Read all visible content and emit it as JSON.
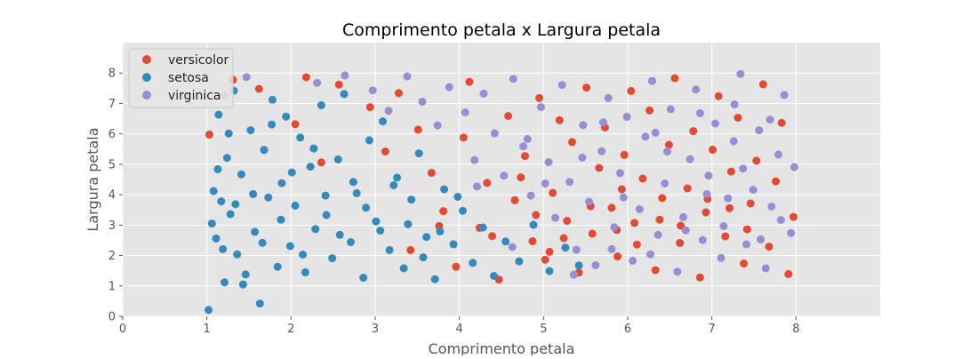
{
  "chart_data": {
    "type": "scatter",
    "title": "Comprimento petala x Largura petala",
    "xlabel": "Comprimento petala",
    "ylabel": "Largura petala",
    "xlim": [
      0,
      9
    ],
    "ylim": [
      0,
      9
    ],
    "xticks": [
      "0",
      "1",
      "2",
      "3",
      "4",
      "5",
      "6",
      "7",
      "8"
    ],
    "yticks": [
      "0",
      "1",
      "2",
      "3",
      "4",
      "5",
      "6",
      "7",
      "8"
    ],
    "grid": true,
    "legend": "top-left",
    "series": [
      {
        "name": "versicolor",
        "color": "#e24a33"
      },
      {
        "name": "setosa",
        "color": "#348abd"
      },
      {
        "name": "virginica",
        "color": "#988ed5"
      }
    ],
    "points": {
      "versicolor": [
        [
          1.03,
          5.98
        ],
        [
          1.31,
          7.78
        ],
        [
          1.62,
          7.48
        ],
        [
          2.05,
          6.32
        ],
        [
          2.18,
          7.86
        ],
        [
          2.36,
          5.06
        ],
        [
          2.57,
          7.62
        ],
        [
          2.94,
          6.88
        ],
        [
          3.12,
          5.42
        ],
        [
          3.28,
          7.34
        ],
        [
          3.42,
          2.18
        ],
        [
          3.51,
          6.14
        ],
        [
          3.67,
          4.72
        ],
        [
          3.81,
          3.46
        ],
        [
          3.96,
          1.63
        ],
        [
          4.05,
          5.88
        ],
        [
          4.12,
          7.71
        ],
        [
          4.24,
          2.91
        ],
        [
          4.33,
          4.39
        ],
        [
          4.47,
          1.21
        ],
        [
          4.58,
          6.59
        ],
        [
          4.66,
          3.82
        ],
        [
          4.78,
          5.27
        ],
        [
          4.87,
          2.47
        ],
        [
          4.95,
          7.18
        ],
        [
          5.02,
          1.86
        ],
        [
          5.11,
          4.06
        ],
        [
          5.19,
          6.45
        ],
        [
          5.28,
          3.14
        ],
        [
          5.34,
          5.73
        ],
        [
          5.42,
          1.44
        ],
        [
          5.51,
          7.52
        ],
        [
          5.58,
          2.72
        ],
        [
          5.66,
          4.88
        ],
        [
          5.73,
          6.21
        ],
        [
          5.81,
          3.57
        ],
        [
          5.88,
          1.97
        ],
        [
          5.96,
          5.31
        ],
        [
          6.04,
          7.41
        ],
        [
          6.11,
          2.36
        ],
        [
          6.18,
          4.53
        ],
        [
          6.26,
          6.77
        ],
        [
          6.33,
          1.52
        ],
        [
          6.41,
          3.89
        ],
        [
          6.49,
          5.64
        ],
        [
          6.56,
          7.83
        ],
        [
          6.63,
          2.98
        ],
        [
          6.71,
          4.21
        ],
        [
          6.78,
          6.09
        ],
        [
          6.86,
          1.28
        ],
        [
          6.93,
          3.42
        ],
        [
          7.01,
          5.48
        ],
        [
          7.08,
          7.24
        ],
        [
          7.16,
          2.63
        ],
        [
          7.23,
          4.76
        ],
        [
          7.31,
          6.53
        ],
        [
          7.38,
          1.74
        ],
        [
          7.46,
          3.71
        ],
        [
          7.53,
          5.12
        ],
        [
          7.61,
          7.63
        ],
        [
          7.68,
          2.29
        ],
        [
          7.76,
          4.44
        ],
        [
          7.83,
          6.36
        ],
        [
          7.91,
          1.39
        ],
        [
          7.97,
          3.27
        ],
        [
          5.07,
          2.12
        ],
        [
          4.91,
          3.33
        ],
        [
          5.24,
          2.57
        ],
        [
          6.38,
          3.18
        ],
        [
          6.62,
          2.41
        ],
        [
          6.95,
          3.86
        ],
        [
          7.42,
          2.86
        ],
        [
          5.87,
          2.84
        ],
        [
          4.39,
          2.64
        ],
        [
          3.76,
          2.97
        ],
        [
          5.56,
          3.62
        ],
        [
          6.08,
          3.07
        ],
        [
          7.21,
          3.56
        ],
        [
          4.73,
          4.57
        ],
        [
          5.93,
          4.18
        ]
      ],
      "setosa": [
        [
          1.02,
          0.21
        ],
        [
          1.08,
          4.12
        ],
        [
          1.11,
          2.56
        ],
        [
          1.14,
          6.63
        ],
        [
          1.17,
          3.78
        ],
        [
          1.21,
          1.12
        ],
        [
          1.24,
          5.21
        ],
        [
          1.28,
          3.36
        ],
        [
          1.32,
          7.42
        ],
        [
          1.36,
          2.04
        ],
        [
          1.41,
          4.67
        ],
        [
          1.46,
          1.38
        ],
        [
          1.52,
          6.12
        ],
        [
          1.57,
          2.78
        ],
        [
          1.63,
          0.42
        ],
        [
          1.68,
          5.47
        ],
        [
          1.73,
          3.91
        ],
        [
          1.78,
          7.12
        ],
        [
          1.84,
          1.63
        ],
        [
          1.89,
          4.38
        ],
        [
          1.94,
          6.57
        ],
        [
          1.99,
          2.31
        ],
        [
          2.05,
          3.64
        ],
        [
          2.11,
          5.88
        ],
        [
          2.17,
          1.45
        ],
        [
          2.23,
          4.92
        ],
        [
          2.29,
          2.87
        ],
        [
          2.36,
          6.94
        ],
        [
          2.42,
          3.33
        ],
        [
          2.49,
          1.91
        ],
        [
          2.56,
          5.16
        ],
        [
          2.63,
          7.31
        ],
        [
          2.71,
          2.44
        ],
        [
          2.78,
          4.05
        ],
        [
          2.86,
          1.27
        ],
        [
          2.93,
          5.79
        ],
        [
          3.01,
          3.12
        ],
        [
          3.09,
          6.41
        ],
        [
          3.17,
          2.18
        ],
        [
          3.26,
          4.56
        ],
        [
          3.34,
          1.58
        ],
        [
          3.43,
          3.84
        ],
        [
          3.52,
          5.36
        ],
        [
          3.61,
          2.61
        ],
        [
          3.71,
          1.22
        ],
        [
          3.82,
          4.18
        ],
        [
          3.93,
          2.37
        ],
        [
          4.04,
          3.47
        ],
        [
          4.16,
          1.76
        ],
        [
          4.28,
          2.92
        ],
        [
          4.41,
          1.33
        ],
        [
          4.55,
          2.46
        ],
        [
          4.71,
          1.81
        ],
        [
          4.88,
          3.01
        ],
        [
          5.07,
          1.49
        ],
        [
          5.26,
          2.26
        ],
        [
          5.42,
          1.67
        ],
        [
          1.06,
          3.05
        ],
        [
          1.13,
          4.84
        ],
        [
          1.19,
          2.21
        ],
        [
          1.26,
          6.01
        ],
        [
          1.34,
          3.69
        ],
        [
          1.43,
          1.05
        ],
        [
          1.55,
          4.02
        ],
        [
          1.66,
          2.42
        ],
        [
          1.77,
          6.31
        ],
        [
          1.88,
          3.18
        ],
        [
          2.01,
          4.73
        ],
        [
          2.14,
          2.03
        ],
        [
          2.27,
          5.52
        ],
        [
          2.41,
          3.97
        ],
        [
          2.58,
          2.68
        ],
        [
          2.74,
          4.42
        ],
        [
          2.89,
          3.57
        ],
        [
          3.06,
          2.82
        ],
        [
          3.22,
          4.31
        ],
        [
          3.39,
          3.03
        ],
        [
          3.57,
          1.94
        ],
        [
          3.77,
          2.79
        ],
        [
          3.98,
          3.93
        ]
      ],
      "virginica": [
        [
          1.21,
          7.26
        ],
        [
          1.47,
          7.87
        ],
        [
          2.31,
          7.68
        ],
        [
          2.64,
          7.92
        ],
        [
          2.97,
          7.43
        ],
        [
          3.16,
          6.76
        ],
        [
          3.38,
          7.89
        ],
        [
          3.56,
          7.06
        ],
        [
          3.74,
          6.28
        ],
        [
          3.88,
          7.54
        ],
        [
          4.07,
          6.71
        ],
        [
          4.18,
          5.14
        ],
        [
          4.29,
          7.33
        ],
        [
          4.42,
          6.02
        ],
        [
          4.53,
          4.63
        ],
        [
          4.64,
          7.81
        ],
        [
          4.76,
          5.59
        ],
        [
          4.85,
          3.97
        ],
        [
          4.97,
          6.88
        ],
        [
          5.06,
          5.07
        ],
        [
          5.14,
          3.24
        ],
        [
          5.22,
          7.61
        ],
        [
          5.31,
          4.42
        ],
        [
          5.39,
          2.19
        ],
        [
          5.47,
          6.29
        ],
        [
          5.54,
          3.77
        ],
        [
          5.62,
          1.68
        ],
        [
          5.69,
          5.43
        ],
        [
          5.77,
          7.18
        ],
        [
          5.84,
          2.93
        ],
        [
          5.91,
          4.71
        ],
        [
          5.99,
          6.56
        ],
        [
          6.06,
          1.83
        ],
        [
          6.14,
          3.52
        ],
        [
          6.21,
          5.91
        ],
        [
          6.29,
          7.74
        ],
        [
          6.36,
          2.68
        ],
        [
          6.44,
          4.37
        ],
        [
          6.51,
          6.81
        ],
        [
          6.59,
          1.47
        ],
        [
          6.66,
          3.26
        ],
        [
          6.74,
          5.17
        ],
        [
          6.81,
          7.46
        ],
        [
          6.89,
          2.51
        ],
        [
          6.96,
          4.63
        ],
        [
          7.04,
          6.34
        ],
        [
          7.11,
          1.92
        ],
        [
          7.19,
          3.88
        ],
        [
          7.26,
          5.76
        ],
        [
          7.34,
          7.97
        ],
        [
          7.41,
          2.37
        ],
        [
          7.49,
          4.16
        ],
        [
          7.56,
          6.12
        ],
        [
          7.64,
          1.58
        ],
        [
          7.71,
          3.61
        ],
        [
          7.79,
          5.32
        ],
        [
          7.86,
          7.28
        ],
        [
          7.94,
          2.74
        ],
        [
          7.98,
          4.91
        ],
        [
          5.36,
          1.37
        ],
        [
          5.81,
          2.21
        ],
        [
          6.27,
          2.04
        ],
        [
          6.69,
          2.83
        ],
        [
          7.14,
          2.97
        ],
        [
          7.58,
          2.53
        ],
        [
          4.63,
          2.28
        ],
        [
          5.02,
          4.37
        ],
        [
          5.46,
          5.22
        ],
        [
          5.95,
          3.91
        ],
        [
          6.47,
          5.42
        ],
        [
          6.94,
          4.02
        ],
        [
          7.37,
          4.86
        ],
        [
          7.82,
          3.17
        ],
        [
          4.21,
          4.27
        ],
        [
          4.81,
          5.83
        ],
        [
          5.71,
          6.38
        ],
        [
          6.33,
          6.04
        ],
        [
          6.86,
          6.68
        ],
        [
          7.27,
          6.97
        ],
        [
          7.69,
          6.47
        ]
      ]
    }
  }
}
